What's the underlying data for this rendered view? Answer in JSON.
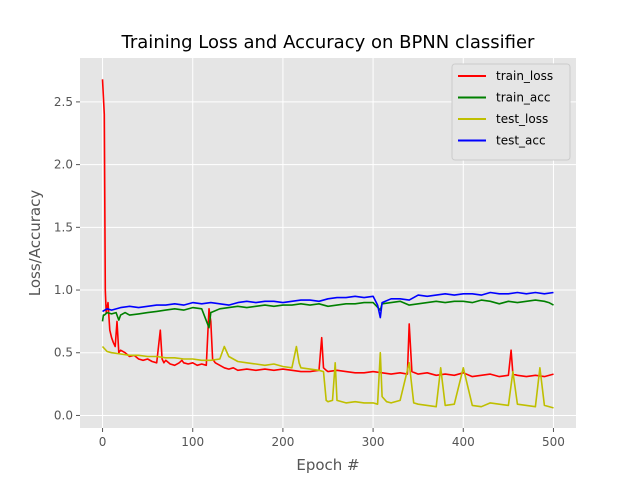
{
  "chart_data": {
    "type": "line",
    "title": "Training Loss and Accuracy on BPNN classifier",
    "xlabel": "Epoch #",
    "ylabel": "Loss/Accuracy",
    "xlim": [
      -25,
      525
    ],
    "ylim": [
      -0.1,
      2.85
    ],
    "xticks": [
      0,
      100,
      200,
      300,
      400,
      500
    ],
    "yticks": [
      0.0,
      0.5,
      1.0,
      1.5,
      2.0,
      2.5
    ],
    "xtick_labels": [
      "0",
      "100",
      "200",
      "300",
      "400",
      "500"
    ],
    "ytick_labels": [
      "0.0",
      "0.5",
      "1.0",
      "1.5",
      "2.0",
      "2.5"
    ],
    "grid": true,
    "legend_position": "top-right",
    "series": [
      {
        "name": "train_loss",
        "color": "#ff0000",
        "x": [
          0,
          2,
          3,
          4,
          6,
          8,
          10,
          12,
          14,
          16,
          18,
          20,
          25,
          30,
          35,
          40,
          45,
          50,
          55,
          60,
          64,
          66,
          68,
          70,
          75,
          80,
          85,
          88,
          90,
          95,
          100,
          105,
          110,
          115,
          118,
          120,
          122,
          125,
          130,
          135,
          140,
          145,
          150,
          160,
          170,
          180,
          190,
          200,
          210,
          220,
          230,
          240,
          243,
          245,
          248,
          250,
          260,
          270,
          280,
          290,
          300,
          310,
          320,
          330,
          338,
          340,
          343,
          350,
          360,
          370,
          380,
          390,
          400,
          410,
          420,
          430,
          440,
          450,
          453,
          455,
          460,
          470,
          480,
          490,
          500
        ],
        "values": [
          2.68,
          2.4,
          1.0,
          0.82,
          0.9,
          0.68,
          0.62,
          0.58,
          0.55,
          0.75,
          0.5,
          0.52,
          0.5,
          0.47,
          0.48,
          0.45,
          0.44,
          0.45,
          0.43,
          0.42,
          0.68,
          0.45,
          0.42,
          0.44,
          0.41,
          0.4,
          0.42,
          0.44,
          0.42,
          0.41,
          0.42,
          0.4,
          0.41,
          0.4,
          0.85,
          0.75,
          0.45,
          0.42,
          0.4,
          0.38,
          0.37,
          0.38,
          0.36,
          0.37,
          0.36,
          0.37,
          0.36,
          0.37,
          0.36,
          0.35,
          0.35,
          0.36,
          0.62,
          0.38,
          0.36,
          0.35,
          0.36,
          0.35,
          0.34,
          0.34,
          0.35,
          0.34,
          0.33,
          0.34,
          0.33,
          0.73,
          0.35,
          0.33,
          0.34,
          0.32,
          0.33,
          0.32,
          0.34,
          0.31,
          0.32,
          0.33,
          0.31,
          0.32,
          0.52,
          0.33,
          0.32,
          0.31,
          0.32,
          0.31,
          0.33
        ]
      },
      {
        "name": "train_acc",
        "color": "#008000",
        "x": [
          0,
          1,
          2,
          5,
          10,
          15,
          18,
          20,
          25,
          30,
          40,
          50,
          60,
          70,
          80,
          90,
          100,
          110,
          118,
          120,
          130,
          140,
          150,
          160,
          170,
          180,
          190,
          200,
          210,
          220,
          230,
          240,
          250,
          260,
          270,
          280,
          290,
          300,
          308,
          310,
          320,
          330,
          340,
          350,
          360,
          370,
          380,
          390,
          400,
          410,
          420,
          430,
          440,
          450,
          460,
          470,
          480,
          490,
          495,
          500
        ],
        "values": [
          0.75,
          0.8,
          0.8,
          0.82,
          0.81,
          0.82,
          0.76,
          0.8,
          0.82,
          0.8,
          0.81,
          0.82,
          0.83,
          0.84,
          0.85,
          0.84,
          0.86,
          0.85,
          0.7,
          0.82,
          0.85,
          0.86,
          0.87,
          0.86,
          0.87,
          0.88,
          0.87,
          0.88,
          0.88,
          0.89,
          0.88,
          0.89,
          0.87,
          0.88,
          0.89,
          0.89,
          0.9,
          0.9,
          0.84,
          0.89,
          0.9,
          0.91,
          0.88,
          0.89,
          0.9,
          0.91,
          0.9,
          0.91,
          0.91,
          0.9,
          0.92,
          0.91,
          0.89,
          0.91,
          0.9,
          0.91,
          0.92,
          0.91,
          0.9,
          0.88
        ]
      },
      {
        "name": "test_loss",
        "color": "#bfbf00",
        "x": [
          0,
          5,
          10,
          20,
          30,
          40,
          50,
          60,
          70,
          80,
          90,
          100,
          110,
          120,
          130,
          135,
          140,
          150,
          160,
          170,
          180,
          190,
          200,
          210,
          215,
          218,
          220,
          230,
          240,
          245,
          248,
          250,
          255,
          258,
          260,
          270,
          280,
          290,
          300,
          305,
          308,
          310,
          315,
          320,
          330,
          340,
          345,
          350,
          360,
          370,
          375,
          380,
          390,
          400,
          410,
          420,
          430,
          440,
          450,
          455,
          460,
          470,
          480,
          485,
          490,
          500
        ],
        "values": [
          0.55,
          0.51,
          0.5,
          0.49,
          0.48,
          0.48,
          0.47,
          0.47,
          0.46,
          0.46,
          0.45,
          0.45,
          0.44,
          0.44,
          0.45,
          0.55,
          0.47,
          0.43,
          0.42,
          0.41,
          0.4,
          0.41,
          0.39,
          0.38,
          0.55,
          0.42,
          0.38,
          0.37,
          0.36,
          0.35,
          0.12,
          0.11,
          0.12,
          0.42,
          0.12,
          0.1,
          0.11,
          0.1,
          0.1,
          0.09,
          0.5,
          0.15,
          0.11,
          0.1,
          0.12,
          0.42,
          0.1,
          0.09,
          0.08,
          0.07,
          0.38,
          0.08,
          0.09,
          0.38,
          0.08,
          0.07,
          0.1,
          0.09,
          0.08,
          0.35,
          0.09,
          0.08,
          0.07,
          0.38,
          0.08,
          0.06
        ]
      },
      {
        "name": "test_acc",
        "color": "#0000ff",
        "x": [
          0,
          5,
          10,
          20,
          30,
          40,
          50,
          60,
          70,
          80,
          90,
          100,
          110,
          120,
          130,
          140,
          150,
          160,
          170,
          180,
          190,
          200,
          210,
          220,
          230,
          240,
          250,
          260,
          270,
          280,
          290,
          300,
          305,
          308,
          310,
          320,
          330,
          340,
          350,
          360,
          370,
          380,
          390,
          400,
          410,
          420,
          430,
          440,
          450,
          460,
          470,
          480,
          490,
          500
        ],
        "values": [
          0.83,
          0.85,
          0.84,
          0.86,
          0.87,
          0.86,
          0.87,
          0.88,
          0.88,
          0.89,
          0.88,
          0.9,
          0.89,
          0.9,
          0.89,
          0.88,
          0.9,
          0.91,
          0.9,
          0.91,
          0.91,
          0.9,
          0.91,
          0.92,
          0.92,
          0.91,
          0.93,
          0.94,
          0.94,
          0.95,
          0.94,
          0.95,
          0.88,
          0.78,
          0.9,
          0.93,
          0.93,
          0.92,
          0.96,
          0.95,
          0.96,
          0.97,
          0.96,
          0.97,
          0.97,
          0.96,
          0.98,
          0.97,
          0.97,
          0.98,
          0.97,
          0.98,
          0.97,
          0.98
        ]
      }
    ]
  }
}
